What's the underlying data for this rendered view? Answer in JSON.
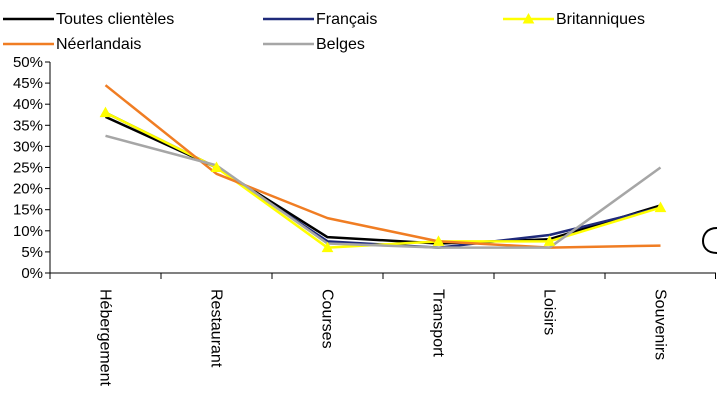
{
  "chart_data": {
    "type": "line",
    "categories": [
      "Hébergement",
      "Restaurant",
      "Courses",
      "Transport",
      "Loisirs",
      "Souvenirs"
    ],
    "y_tick_labels": [
      "50%",
      "45%",
      "40%",
      "35%",
      "30%",
      "25%",
      "20%",
      "15%",
      "10%",
      "5%",
      "0%"
    ],
    "ylim": [
      0,
      50
    ],
    "y_step": 5,
    "grid": false,
    "legend_position": "top",
    "series": [
      {
        "name": "Toutes clientèles",
        "color": "#000000",
        "values": [
          37,
          25,
          8.5,
          7,
          8,
          16
        ],
        "marker": "none"
      },
      {
        "name": "Français",
        "color": "#1f2a7a",
        "values": [
          38,
          25,
          7.5,
          6,
          9,
          15.5
        ],
        "marker": "none"
      },
      {
        "name": "Britanniques",
        "color": "#ffff00",
        "values": [
          38,
          25,
          6,
          7.5,
          7.5,
          15.5
        ],
        "marker": "triangle"
      },
      {
        "name": "Néerlandais",
        "color": "#f07d23",
        "values": [
          44.5,
          23.5,
          13,
          7.5,
          6,
          6.5
        ],
        "marker": "none"
      },
      {
        "name": "Belges",
        "color": "#a6a6a6",
        "values": [
          32.5,
          25.5,
          7,
          6,
          6,
          25
        ],
        "marker": "none"
      }
    ]
  }
}
